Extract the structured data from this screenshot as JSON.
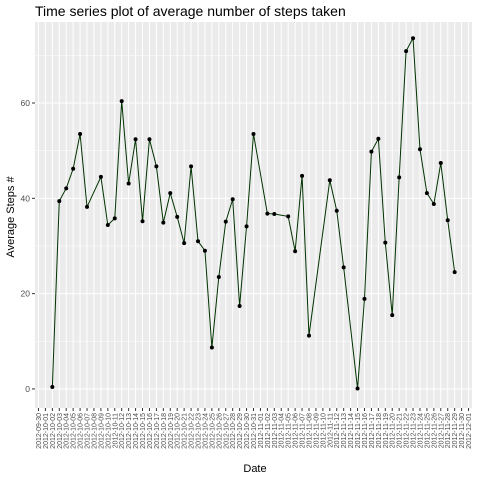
{
  "chart_data": {
    "type": "line",
    "title": "Time series plot of average number of steps taken",
    "xlabel": "Date",
    "ylabel": "Average Steps #",
    "ylim": [
      -4,
      77
    ],
    "y_ticks": [
      0,
      20,
      40,
      60
    ],
    "grid": true,
    "line_color": "#003300",
    "point_color": "#000000",
    "panel_bg": "#ebebeb",
    "grid_color": "#ffffff",
    "x_categories": [
      "2012-09-30",
      "2012-10-01",
      "2012-10-02",
      "2012-10-03",
      "2012-10-04",
      "2012-10-05",
      "2012-10-06",
      "2012-10-07",
      "2012-10-08",
      "2012-10-09",
      "2012-10-10",
      "2012-10-11",
      "2012-10-12",
      "2012-10-13",
      "2012-10-14",
      "2012-10-15",
      "2012-10-16",
      "2012-10-17",
      "2012-10-18",
      "2012-10-19",
      "2012-10-20",
      "2012-10-21",
      "2012-10-22",
      "2012-10-23",
      "2012-10-24",
      "2012-10-25",
      "2012-10-26",
      "2012-10-27",
      "2012-10-28",
      "2012-10-29",
      "2012-10-30",
      "2012-10-31",
      "2012-11-01",
      "2012-11-02",
      "2012-11-03",
      "2012-11-04",
      "2012-11-05",
      "2012-11-06",
      "2012-11-07",
      "2012-11-08",
      "2012-11-09",
      "2012-11-10",
      "2012-11-11",
      "2012-11-12",
      "2012-11-13",
      "2012-11-14",
      "2012-11-15",
      "2012-11-16",
      "2012-11-17",
      "2012-11-18",
      "2012-11-19",
      "2012-11-20",
      "2012-11-21",
      "2012-11-22",
      "2012-11-23",
      "2012-11-24",
      "2012-11-25",
      "2012-11-26",
      "2012-11-27",
      "2012-11-28",
      "2012-11-29",
      "2012-11-30",
      "2012-12-01"
    ],
    "series": [
      {
        "points": [
          {
            "x": "2012-10-02",
            "y": 0.4
          },
          {
            "x": "2012-10-03",
            "y": 39.4
          },
          {
            "x": "2012-10-04",
            "y": 42.1
          },
          {
            "x": "2012-10-05",
            "y": 46.2
          },
          {
            "x": "2012-10-06",
            "y": 53.5
          },
          {
            "x": "2012-10-07",
            "y": 38.2
          },
          {
            "x": "2012-10-09",
            "y": 44.5
          },
          {
            "x": "2012-10-10",
            "y": 34.4
          },
          {
            "x": "2012-10-11",
            "y": 35.8
          },
          {
            "x": "2012-10-12",
            "y": 60.4
          },
          {
            "x": "2012-10-13",
            "y": 43.1
          },
          {
            "x": "2012-10-14",
            "y": 52.4
          },
          {
            "x": "2012-10-15",
            "y": 35.2
          },
          {
            "x": "2012-10-16",
            "y": 52.4
          },
          {
            "x": "2012-10-17",
            "y": 46.7
          },
          {
            "x": "2012-10-18",
            "y": 34.9
          },
          {
            "x": "2012-10-19",
            "y": 41.1
          },
          {
            "x": "2012-10-20",
            "y": 36.1
          },
          {
            "x": "2012-10-21",
            "y": 30.6
          },
          {
            "x": "2012-10-22",
            "y": 46.7
          },
          {
            "x": "2012-10-23",
            "y": 31.0
          },
          {
            "x": "2012-10-24",
            "y": 29.0
          },
          {
            "x": "2012-10-25",
            "y": 8.7
          },
          {
            "x": "2012-10-26",
            "y": 23.5
          },
          {
            "x": "2012-10-27",
            "y": 35.1
          },
          {
            "x": "2012-10-28",
            "y": 39.8
          },
          {
            "x": "2012-10-29",
            "y": 17.4
          },
          {
            "x": "2012-10-30",
            "y": 34.1
          },
          {
            "x": "2012-10-31",
            "y": 53.5
          },
          {
            "x": "2012-11-02",
            "y": 36.8
          },
          {
            "x": "2012-11-03",
            "y": 36.7
          },
          {
            "x": "2012-11-05",
            "y": 36.2
          },
          {
            "x": "2012-11-06",
            "y": 28.9
          },
          {
            "x": "2012-11-07",
            "y": 44.7
          },
          {
            "x": "2012-11-08",
            "y": 11.2
          },
          {
            "x": "2012-11-11",
            "y": 43.8
          },
          {
            "x": "2012-11-12",
            "y": 37.4
          },
          {
            "x": "2012-11-13",
            "y": 25.5
          },
          {
            "x": "2012-11-15",
            "y": 0.1
          },
          {
            "x": "2012-11-16",
            "y": 18.9
          },
          {
            "x": "2012-11-17",
            "y": 49.8
          },
          {
            "x": "2012-11-18",
            "y": 52.5
          },
          {
            "x": "2012-11-19",
            "y": 30.7
          },
          {
            "x": "2012-11-20",
            "y": 15.5
          },
          {
            "x": "2012-11-21",
            "y": 44.4
          },
          {
            "x": "2012-11-22",
            "y": 70.9
          },
          {
            "x": "2012-11-23",
            "y": 73.6
          },
          {
            "x": "2012-11-24",
            "y": 50.3
          },
          {
            "x": "2012-11-25",
            "y": 41.1
          },
          {
            "x": "2012-11-26",
            "y": 38.8
          },
          {
            "x": "2012-11-27",
            "y": 47.4
          },
          {
            "x": "2012-11-28",
            "y": 35.4
          },
          {
            "x": "2012-11-29",
            "y": 24.5
          }
        ]
      }
    ]
  }
}
